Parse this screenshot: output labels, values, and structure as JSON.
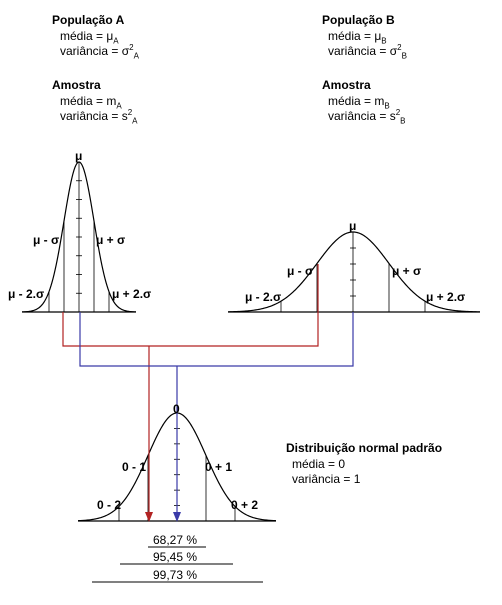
{
  "population_a": {
    "title": "População A",
    "mean": "média = μ",
    "mean_sub": "A",
    "variance": "variância = σ",
    "variance_sup": "2",
    "variance_sub": "A"
  },
  "population_b": {
    "title": "População B",
    "mean": "média = μ",
    "mean_sub": "B",
    "variance": "variância = σ",
    "variance_sup": "2",
    "variance_sub": "B"
  },
  "sample_a": {
    "title": "Amostra",
    "mean": "média = m",
    "mean_sub": "A",
    "variance": "variância = s",
    "variance_sup": "2",
    "variance_sub": "A"
  },
  "sample_b": {
    "title": "Amostra",
    "mean": "média = m",
    "mean_sub": "B",
    "variance": "variância = s",
    "variance_sup": "2",
    "variance_sub": "B"
  },
  "curve_a_labels": {
    "mu": "μ",
    "minus_sigma": "μ - σ",
    "plus_sigma": "μ + σ",
    "minus_2sigma": "μ - 2.σ",
    "plus_2sigma": "μ + 2.σ"
  },
  "curve_b_labels": {
    "mu": "μ",
    "minus_sigma": "μ - σ",
    "plus_sigma": "μ + σ",
    "minus_2sigma": "μ - 2.σ",
    "plus_2sigma": "μ + 2.σ"
  },
  "standard_curve_labels": {
    "zero": "0",
    "minus_1": "0 - 1",
    "plus_1": "0 + 1",
    "minus_2": "0 - 2",
    "plus_2": "0 + 2"
  },
  "standard_normal": {
    "title": "Distribuição normal padrão",
    "mean": "média = 0",
    "variance": "variância = 1"
  },
  "percentages": [
    "68,27 %",
    "95,45 %",
    "99,73 %"
  ],
  "colors": {
    "red_arrow": "#b22222",
    "blue_arrow": "#3a3aa8"
  }
}
